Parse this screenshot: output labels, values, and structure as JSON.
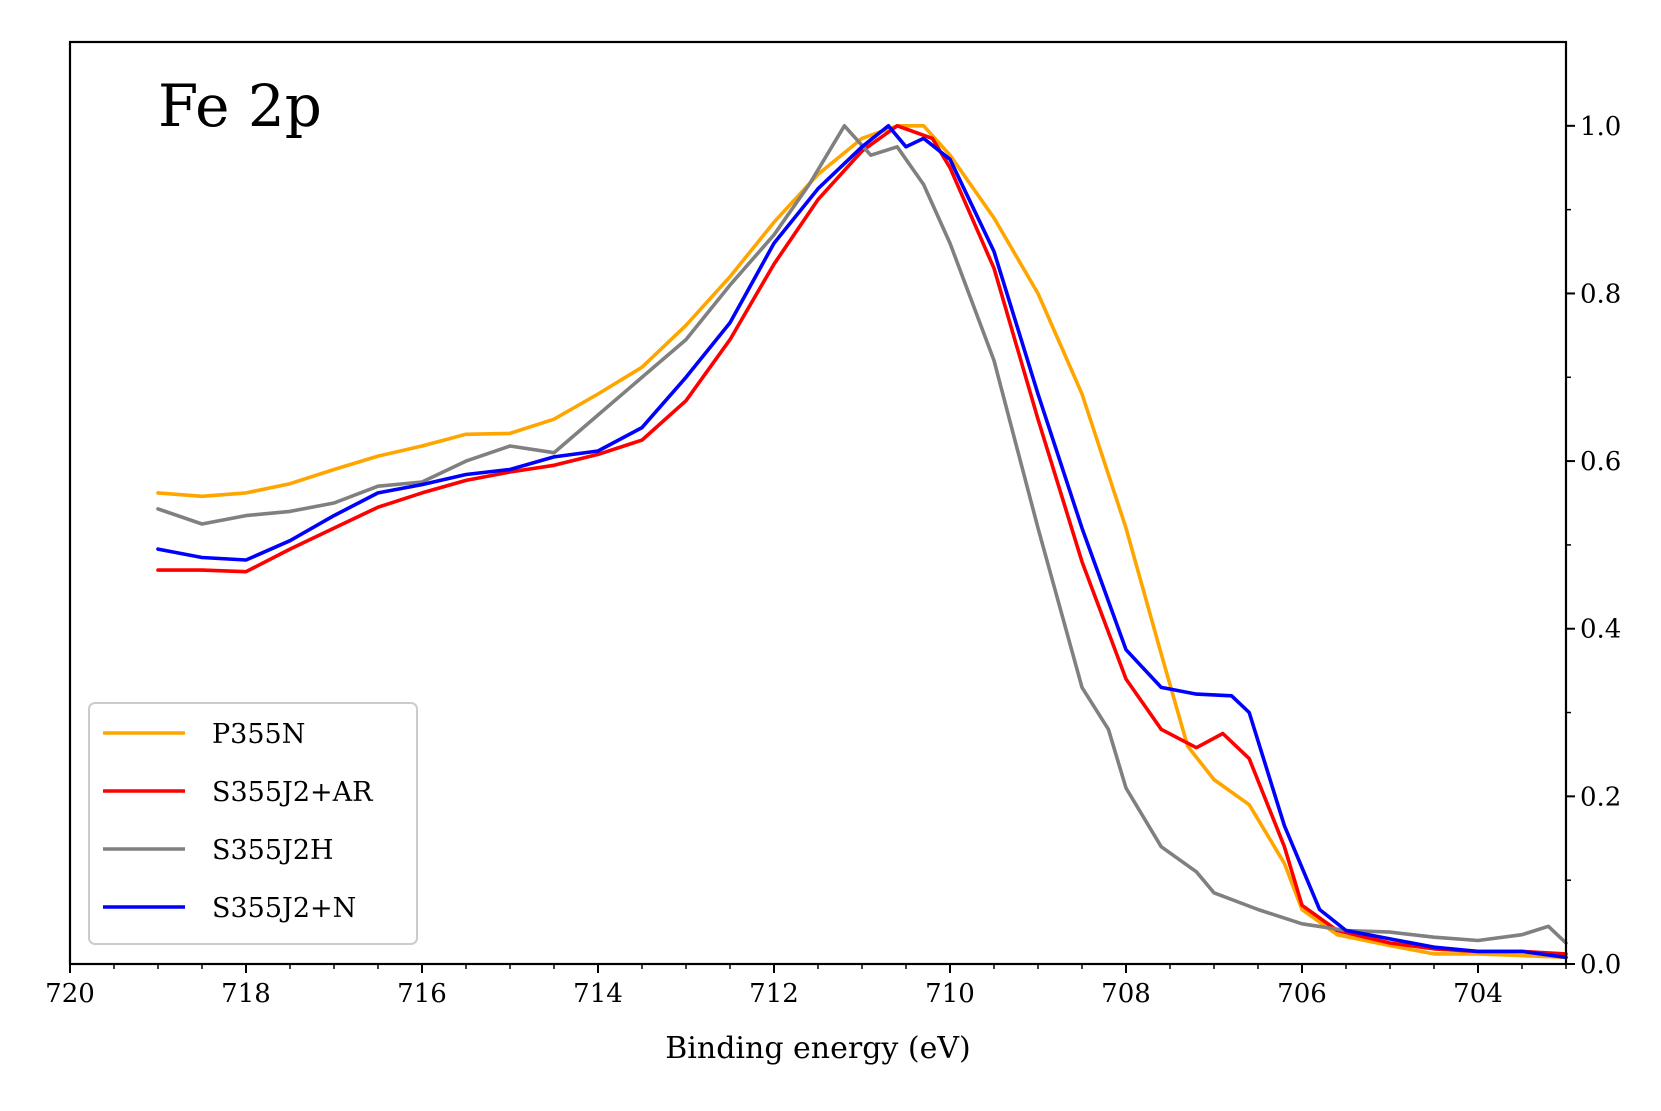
{
  "chart_data": {
    "type": "line",
    "panel_label": "Fe 2p",
    "xlabel": "Binding energy (eV)",
    "ylabel": "",
    "xlim": [
      720,
      703
    ],
    "ylim": [
      0.0,
      1.1
    ],
    "x_reversed": true,
    "y_axis_side": "right",
    "grid": false,
    "legend_position": "lower-left",
    "x_ticks": [
      720,
      718,
      716,
      714,
      712,
      710,
      708,
      706,
      704
    ],
    "x_tick_labels": [
      "720",
      "718",
      "716",
      "714",
      "712",
      "710",
      "708",
      "706",
      "704"
    ],
    "y_ticks": [
      0.0,
      0.2,
      0.4,
      0.6,
      0.8,
      1.0
    ],
    "y_tick_labels": [
      "0.0",
      "0.2",
      "0.4",
      "0.6",
      "0.8",
      "1.0"
    ],
    "series": [
      {
        "name": "P355N",
        "color": "#FFA500",
        "points": [
          [
            719.0,
            0.562
          ],
          [
            718.5,
            0.558
          ],
          [
            718.0,
            0.562
          ],
          [
            717.5,
            0.573
          ],
          [
            717.0,
            0.59
          ],
          [
            716.5,
            0.606
          ],
          [
            716.0,
            0.618
          ],
          [
            715.5,
            0.632
          ],
          [
            715.0,
            0.633
          ],
          [
            714.5,
            0.65
          ],
          [
            714.0,
            0.68
          ],
          [
            713.5,
            0.712
          ],
          [
            713.0,
            0.762
          ],
          [
            712.5,
            0.82
          ],
          [
            712.0,
            0.885
          ],
          [
            711.5,
            0.942
          ],
          [
            711.0,
            0.985
          ],
          [
            710.6,
            1.0
          ],
          [
            710.3,
            1.0
          ],
          [
            710.0,
            0.965
          ],
          [
            709.5,
            0.89
          ],
          [
            709.0,
            0.8
          ],
          [
            708.5,
            0.68
          ],
          [
            708.0,
            0.52
          ],
          [
            707.6,
            0.37
          ],
          [
            707.3,
            0.26
          ],
          [
            707.0,
            0.22
          ],
          [
            706.6,
            0.19
          ],
          [
            706.2,
            0.12
          ],
          [
            706.0,
            0.065
          ],
          [
            705.6,
            0.035
          ],
          [
            705.0,
            0.022
          ],
          [
            704.5,
            0.012
          ],
          [
            704.0,
            0.012
          ],
          [
            703.5,
            0.01
          ],
          [
            703.0,
            0.008
          ]
        ]
      },
      {
        "name": "S355J2+AR",
        "color": "#FF0000",
        "points": [
          [
            719.0,
            0.47
          ],
          [
            718.5,
            0.47
          ],
          [
            718.0,
            0.468
          ],
          [
            717.5,
            0.495
          ],
          [
            717.0,
            0.52
          ],
          [
            716.5,
            0.545
          ],
          [
            716.0,
            0.562
          ],
          [
            715.5,
            0.577
          ],
          [
            715.0,
            0.587
          ],
          [
            714.5,
            0.595
          ],
          [
            714.0,
            0.608
          ],
          [
            713.5,
            0.625
          ],
          [
            713.0,
            0.672
          ],
          [
            712.5,
            0.745
          ],
          [
            712.0,
            0.835
          ],
          [
            711.5,
            0.912
          ],
          [
            711.0,
            0.97
          ],
          [
            710.6,
            1.0
          ],
          [
            710.2,
            0.985
          ],
          [
            710.0,
            0.95
          ],
          [
            709.5,
            0.83
          ],
          [
            709.0,
            0.65
          ],
          [
            708.5,
            0.48
          ],
          [
            708.0,
            0.34
          ],
          [
            707.6,
            0.28
          ],
          [
            707.2,
            0.258
          ],
          [
            706.9,
            0.275
          ],
          [
            706.6,
            0.245
          ],
          [
            706.2,
            0.14
          ],
          [
            706.0,
            0.07
          ],
          [
            705.6,
            0.04
          ],
          [
            705.0,
            0.025
          ],
          [
            704.5,
            0.018
          ],
          [
            704.0,
            0.015
          ],
          [
            703.5,
            0.015
          ],
          [
            703.0,
            0.012
          ]
        ]
      },
      {
        "name": "S355J2H",
        "color": "#808080",
        "points": [
          [
            719.0,
            0.543
          ],
          [
            718.5,
            0.525
          ],
          [
            718.0,
            0.535
          ],
          [
            717.5,
            0.54
          ],
          [
            717.0,
            0.55
          ],
          [
            716.5,
            0.57
          ],
          [
            716.0,
            0.575
          ],
          [
            715.5,
            0.6
          ],
          [
            715.0,
            0.618
          ],
          [
            714.5,
            0.61
          ],
          [
            714.0,
            0.655
          ],
          [
            713.5,
            0.7
          ],
          [
            713.0,
            0.745
          ],
          [
            712.5,
            0.81
          ],
          [
            712.0,
            0.87
          ],
          [
            711.6,
            0.93
          ],
          [
            711.2,
            1.0
          ],
          [
            710.9,
            0.965
          ],
          [
            710.6,
            0.975
          ],
          [
            710.3,
            0.93
          ],
          [
            710.0,
            0.86
          ],
          [
            709.5,
            0.72
          ],
          [
            709.0,
            0.52
          ],
          [
            708.5,
            0.33
          ],
          [
            708.2,
            0.28
          ],
          [
            708.0,
            0.21
          ],
          [
            707.6,
            0.14
          ],
          [
            707.2,
            0.11
          ],
          [
            707.0,
            0.085
          ],
          [
            706.5,
            0.065
          ],
          [
            706.0,
            0.048
          ],
          [
            705.5,
            0.04
          ],
          [
            705.0,
            0.038
          ],
          [
            704.5,
            0.032
          ],
          [
            704.0,
            0.028
          ],
          [
            703.5,
            0.035
          ],
          [
            703.2,
            0.045
          ],
          [
            703.0,
            0.025
          ]
        ]
      },
      {
        "name": "S355J2+N",
        "color": "#0000FF",
        "points": [
          [
            719.0,
            0.495
          ],
          [
            718.5,
            0.485
          ],
          [
            718.0,
            0.482
          ],
          [
            717.5,
            0.505
          ],
          [
            717.0,
            0.535
          ],
          [
            716.5,
            0.562
          ],
          [
            716.0,
            0.572
          ],
          [
            715.5,
            0.584
          ],
          [
            715.0,
            0.59
          ],
          [
            714.5,
            0.605
          ],
          [
            714.0,
            0.612
          ],
          [
            713.5,
            0.64
          ],
          [
            713.0,
            0.7
          ],
          [
            712.5,
            0.765
          ],
          [
            712.0,
            0.86
          ],
          [
            711.5,
            0.925
          ],
          [
            711.0,
            0.975
          ],
          [
            710.7,
            1.0
          ],
          [
            710.5,
            0.975
          ],
          [
            710.3,
            0.985
          ],
          [
            710.0,
            0.96
          ],
          [
            709.5,
            0.85
          ],
          [
            709.0,
            0.68
          ],
          [
            708.5,
            0.52
          ],
          [
            708.0,
            0.375
          ],
          [
            707.6,
            0.33
          ],
          [
            707.2,
            0.322
          ],
          [
            706.8,
            0.32
          ],
          [
            706.6,
            0.3
          ],
          [
            706.2,
            0.165
          ],
          [
            705.8,
            0.065
          ],
          [
            705.5,
            0.04
          ],
          [
            705.0,
            0.03
          ],
          [
            704.5,
            0.02
          ],
          [
            704.0,
            0.015
          ],
          [
            703.5,
            0.015
          ],
          [
            703.0,
            0.008
          ]
        ]
      }
    ]
  }
}
